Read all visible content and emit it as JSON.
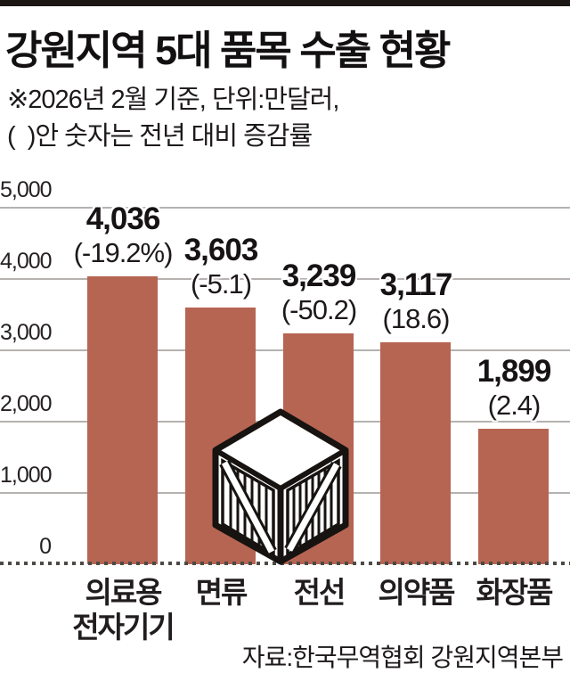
{
  "header": {
    "title": "강원지역 5대 품목 수출 현황",
    "note_line1": "※2026년 2월 기준, 단위:만달러,",
    "note_line2": "(  )안 숫자는 전년 대비 증감률"
  },
  "chart_data": {
    "type": "bar",
    "title": "강원지역 5대 품목 수출 현황",
    "subtitle": "2026년 2월 기준, 단위:만달러, ( )안 숫자는 전년 대비 증감률",
    "unit": "만달러",
    "categories": [
      "의료용 전자기기",
      "면류",
      "전선",
      "의약품",
      "화장품"
    ],
    "category_lines": [
      [
        "의료용",
        "전자기기"
      ],
      [
        "면류"
      ],
      [
        "전선"
      ],
      [
        "의약품"
      ],
      [
        "화장품"
      ]
    ],
    "values": [
      4036,
      3603,
      3239,
      3117,
      1899
    ],
    "value_labels": [
      "4,036",
      "3,603",
      "3,239",
      "3,117",
      "1,899"
    ],
    "change_labels": [
      "(-19.2%)",
      "(-5.1)",
      "(-50.2)",
      "(18.6)",
      "(2.4)"
    ],
    "yoy_change_pct": [
      -19.2,
      -5.1,
      -50.2,
      18.6,
      2.4
    ],
    "ylim": [
      0,
      5000
    ],
    "ytick_values": [
      5000,
      4000,
      3000,
      2000,
      1000,
      0
    ],
    "ytick_labels": [
      "5,000",
      "4,000",
      "3,000",
      "2,000",
      "1,000",
      "0"
    ],
    "grid": true,
    "legend": false,
    "bar_color": "#b66552"
  },
  "icons": {
    "crate": "wooden-crate-icon"
  },
  "footer": {
    "source": "자료:한국무역협회 강원지역본부"
  }
}
